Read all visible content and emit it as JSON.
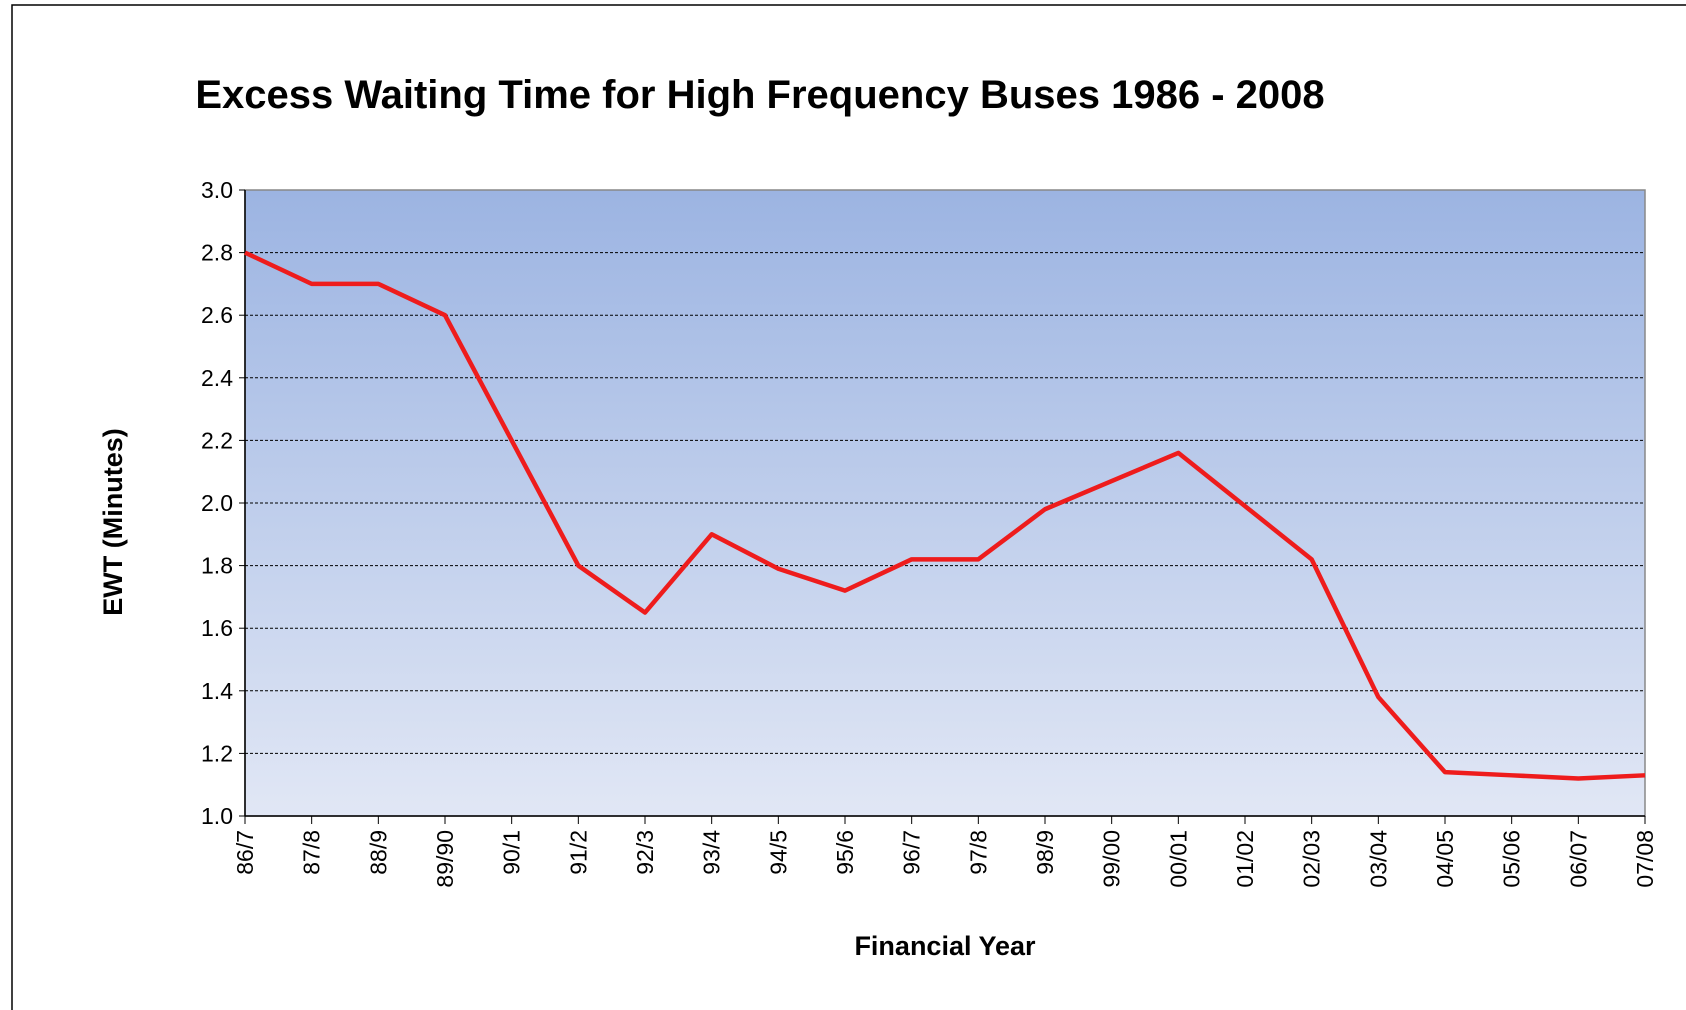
{
  "chart_data": {
    "type": "line",
    "title": "Excess Waiting Time for High Frequency Buses 1986 - 2008",
    "x_label": "Financial Year",
    "y_label": "EWT (Minutes)",
    "categories": [
      "86/7",
      "87/8",
      "88/9",
      "89/90",
      "90/1",
      "91/2",
      "92/3",
      "93/4",
      "94/5",
      "95/6",
      "96/7",
      "97/8",
      "98/9",
      "99/00",
      "00/01",
      "01/02",
      "02/03",
      "03/04",
      "04/05",
      "05/06",
      "06/07",
      "07/08"
    ],
    "series": [
      {
        "name": "EWT",
        "color": "#ee1c1c",
        "values": [
          2.8,
          2.7,
          2.7,
          2.6,
          2.2,
          1.8,
          1.65,
          1.9,
          1.79,
          1.72,
          1.82,
          1.82,
          1.98,
          2.07,
          2.16,
          1.99,
          1.82,
          1.38,
          1.14,
          1.13,
          1.12,
          1.13
        ]
      }
    ],
    "ylim": [
      1,
      3
    ],
    "yticks": [
      {
        "value": 1,
        "label": "1.0"
      },
      1.2,
      1.4,
      1.6,
      1.8,
      {
        "value": 2,
        "label": "2.0"
      },
      2.2,
      2.4,
      2.6,
      2.8,
      {
        "value": 3,
        "label": "3.0"
      }
    ],
    "grid": true
  }
}
